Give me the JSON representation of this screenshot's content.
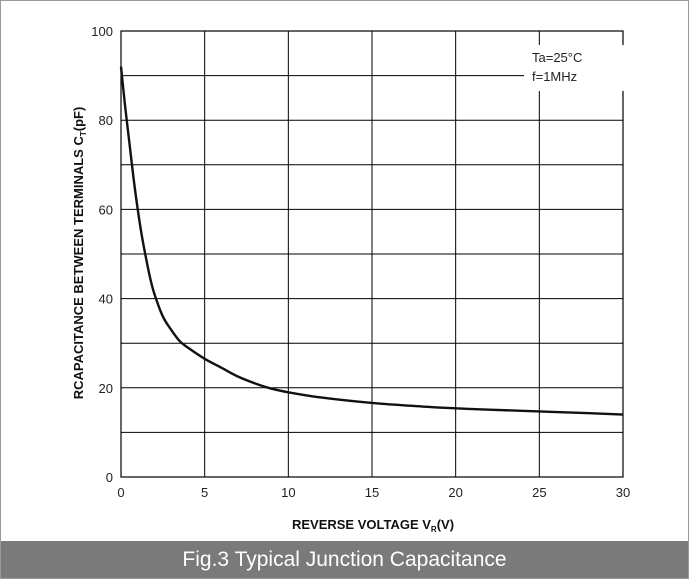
{
  "caption": "Fig.3 Typical Junction Capacitance",
  "colors": {
    "grid": "#000000",
    "curve": "#111111",
    "caption_bg": "#7a7a7a",
    "caption_text": "#ffffff"
  },
  "chart_data": {
    "type": "line",
    "title": "",
    "xlabel_main": "REVERSE VOLTAGE V",
    "xlabel_sub": "R",
    "xlabel_tail": "(V)",
    "ylabel_main": "RCAPACITANCE BETWEEN TERMINALS C",
    "ylabel_sub": "T",
    "ylabel_tail": "(pF)",
    "xlim": [
      0,
      30
    ],
    "ylim": [
      0,
      100
    ],
    "xticks": [
      0,
      5,
      10,
      15,
      20,
      25,
      30
    ],
    "yticks": [
      0,
      20,
      40,
      60,
      80,
      100
    ],
    "grid": true,
    "annotations": [
      "Ta=25°C",
      "f=1MHz"
    ],
    "series": [
      {
        "x": [
          0,
          0.25,
          0.5,
          0.75,
          1,
          1.25,
          1.5,
          1.75,
          2,
          2.5,
          3,
          3.5,
          4,
          5,
          6,
          7,
          8,
          9,
          10,
          12,
          15,
          18,
          20,
          22,
          25,
          28,
          30
        ],
        "y": [
          92,
          83,
          75,
          67,
          60,
          54,
          49,
          44.5,
          41,
          36,
          33,
          30.5,
          29,
          26.5,
          24.5,
          22.5,
          21,
          19.8,
          19,
          17.8,
          16.6,
          15.8,
          15.4,
          15.1,
          14.7,
          14.3,
          14
        ]
      }
    ]
  }
}
